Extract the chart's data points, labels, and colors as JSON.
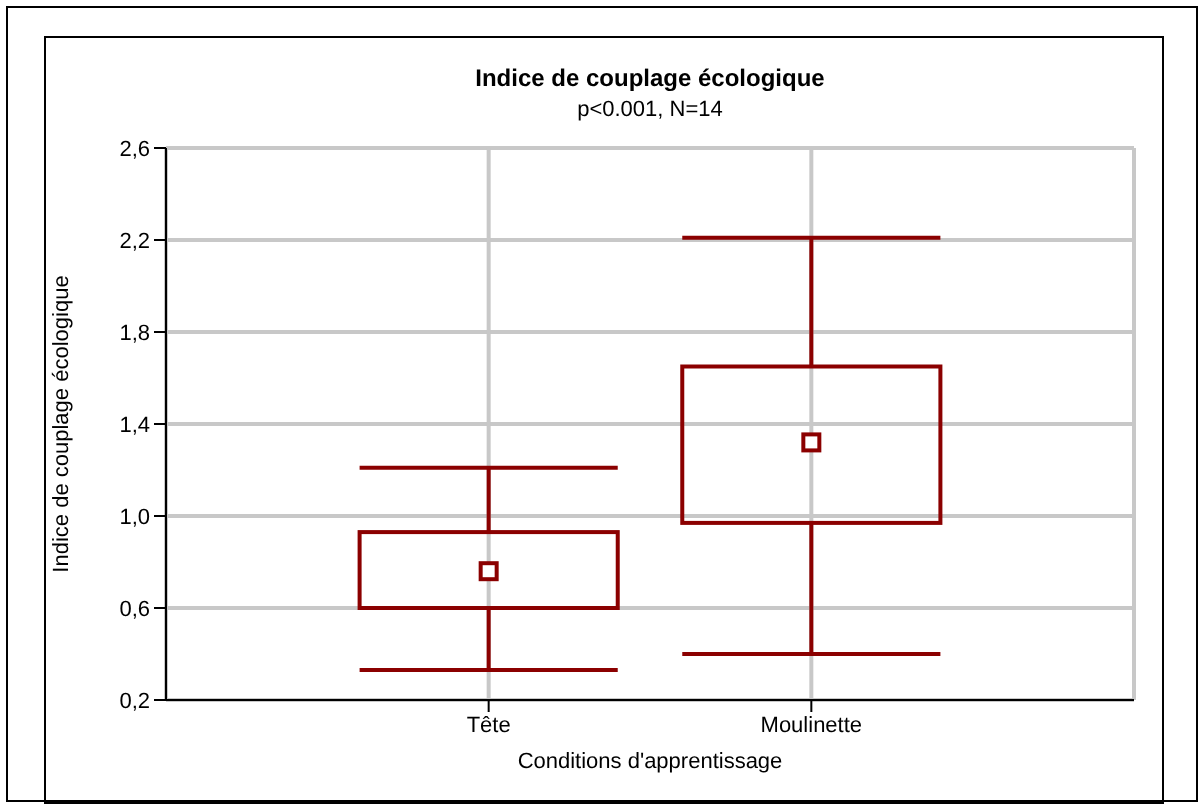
{
  "chart_data": {
    "type": "box",
    "title": "Indice de couplage écologique",
    "subtitle": "p<0.001, N=14",
    "xlabel": "Conditions d'apprentissage",
    "ylabel": "Indice de couplage écologique",
    "categories": [
      "Tête",
      "Moulinette"
    ],
    "boxes": [
      {
        "low": 0.33,
        "q1": 0.6,
        "median": 0.76,
        "q3": 0.93,
        "high": 1.21
      },
      {
        "low": 0.4,
        "q1": 0.97,
        "median": 1.32,
        "q3": 1.65,
        "high": 2.21
      }
    ],
    "color": "#8b0000",
    "ylim": [
      0.2,
      2.6
    ],
    "yticks": [
      {
        "value": 0.2,
        "label": "0,2"
      },
      {
        "value": 0.6,
        "label": "0,6"
      },
      {
        "value": 1.0,
        "label": "1,0"
      },
      {
        "value": 1.4,
        "label": "1,4"
      },
      {
        "value": 1.8,
        "label": "1,8"
      },
      {
        "value": 2.2,
        "label": "2,2"
      },
      {
        "value": 2.6,
        "label": "2,6"
      }
    ],
    "grid": true
  }
}
